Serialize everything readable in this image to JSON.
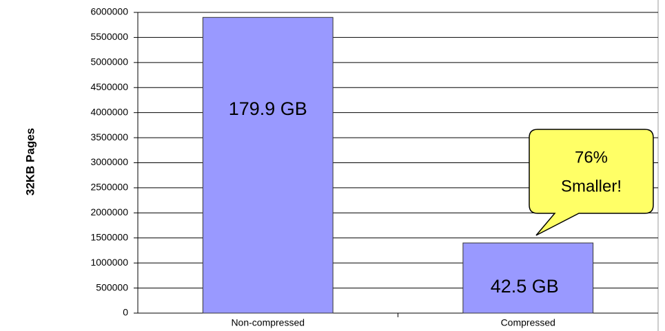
{
  "chart_data": {
    "type": "bar",
    "y_label": "32KB Pages",
    "categories": [
      "Non-compressed",
      "Compressed"
    ],
    "values": [
      5900000,
      1400000
    ],
    "color": "#9999ff",
    "ylim": [
      0,
      6000000
    ],
    "yticks": [
      0,
      500000,
      1000000,
      1500000,
      2000000,
      2500000,
      3000000,
      3500000,
      4000000,
      4500000,
      5000000,
      5500000,
      6000000
    ],
    "grid": true,
    "bar_annotations": [
      "179.9 GB",
      "42.5 GB"
    ],
    "callout": [
      "76%",
      "Smaller!"
    ]
  }
}
